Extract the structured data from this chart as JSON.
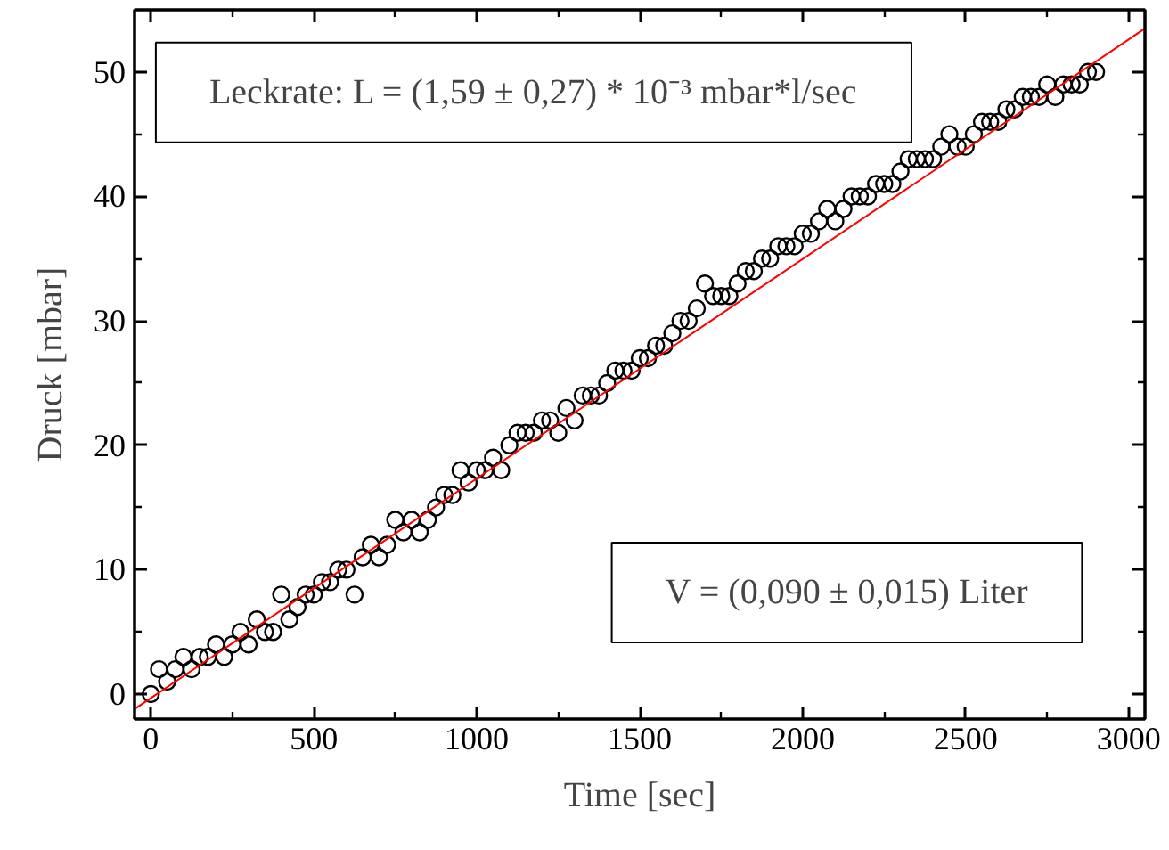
{
  "chart_data": {
    "type": "scatter",
    "xlabel": "Time [sec]",
    "ylabel": "Druck [mbar]",
    "xlim": [
      -50,
      3050
    ],
    "ylim": [
      -2,
      55
    ],
    "xticks": [
      0,
      500,
      1000,
      1500,
      2000,
      2500,
      3000
    ],
    "yticks": [
      0,
      10,
      20,
      30,
      40,
      50
    ],
    "grid": false,
    "annotations": [
      "Leckrate: L = (1,59 ± 0,27) * 10⁻³ mbar*l/sec",
      "V = (0,090 ± 0,015) Liter"
    ],
    "series": [
      {
        "color": "#000000",
        "marker": "circle",
        "x": [
          0,
          25,
          50,
          75,
          100,
          125,
          150,
          175,
          200,
          225,
          250,
          275,
          300,
          325,
          350,
          375,
          400,
          425,
          450,
          475,
          500,
          525,
          550,
          575,
          600,
          625,
          650,
          675,
          700,
          725,
          750,
          775,
          800,
          825,
          850,
          875,
          900,
          925,
          950,
          975,
          1000,
          1025,
          1050,
          1075,
          1100,
          1125,
          1150,
          1175,
          1200,
          1225,
          1250,
          1275,
          1300,
          1325,
          1350,
          1375,
          1400,
          1425,
          1450,
          1475,
          1500,
          1525,
          1550,
          1575,
          1600,
          1625,
          1650,
          1675,
          1700,
          1725,
          1750,
          1775,
          1800,
          1825,
          1850,
          1875,
          1900,
          1925,
          1950,
          1975,
          2000,
          2025,
          2050,
          2075,
          2100,
          2125,
          2150,
          2175,
          2200,
          2225,
          2250,
          2275,
          2300,
          2325,
          2350,
          2375,
          2400,
          2425,
          2450,
          2475,
          2500,
          2525,
          2550,
          2575,
          2600,
          2625,
          2650,
          2675,
          2700,
          2725,
          2750,
          2775,
          2800,
          2825,
          2850,
          2875,
          2900
        ],
        "values": [
          0,
          2,
          1,
          2,
          3,
          2,
          3,
          3,
          4,
          3,
          4,
          5,
          4,
          6,
          5,
          5,
          8,
          6,
          7,
          8,
          8,
          9,
          9,
          10,
          10,
          8,
          11,
          12,
          11,
          12,
          14,
          13,
          14,
          13,
          14,
          15,
          16,
          16,
          18,
          17,
          18,
          18,
          19,
          18,
          20,
          21,
          21,
          21,
          22,
          22,
          21,
          23,
          22,
          24,
          24,
          24,
          25,
          26,
          26,
          26,
          27,
          27,
          28,
          28,
          29,
          30,
          30,
          31,
          33,
          32,
          32,
          32,
          33,
          34,
          34,
          35,
          35,
          36,
          36,
          36,
          37,
          37,
          38,
          39,
          38,
          39,
          40,
          40,
          40,
          41,
          41,
          41,
          42,
          43,
          43,
          43,
          43,
          44,
          45,
          44,
          44,
          45,
          46,
          46,
          46,
          47,
          47,
          48,
          48,
          48,
          49,
          48,
          49,
          49,
          49,
          50,
          50
        ]
      },
      {
        "type": "line",
        "color": "#ff0000",
        "marker": "none",
        "x": [
          -50,
          3050
        ],
        "values": [
          -1.2,
          53.5
        ]
      }
    ]
  }
}
